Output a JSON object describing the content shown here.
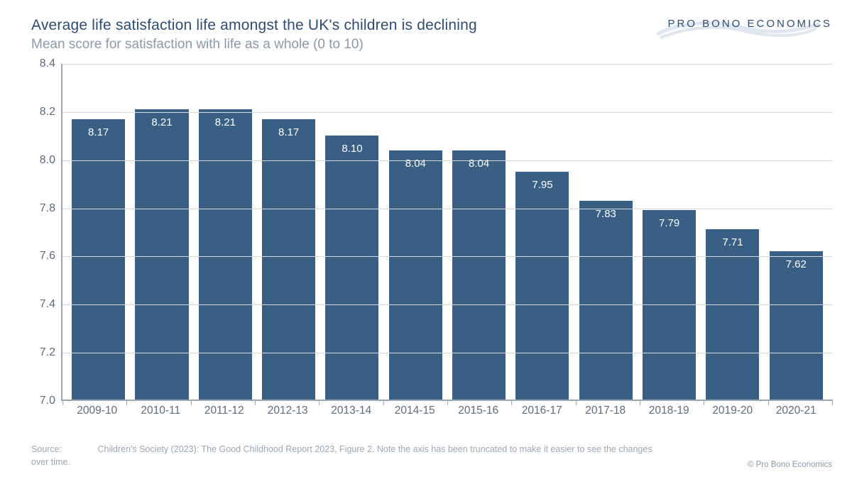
{
  "header": {
    "title": "Average life satisfaction life amongst the UK's children is declining",
    "subtitle": "Mean score for satisfaction with life as a whole (0 to 10)",
    "brand": "PRO BONO ECONOMICS"
  },
  "chart": {
    "type": "bar",
    "categories": [
      "2009-10",
      "2010-11",
      "2011-12",
      "2012-13",
      "2013-14",
      "2014-15",
      "2015-16",
      "2016-17",
      "2017-18",
      "2018-19",
      "2019-20",
      "2020-21"
    ],
    "values": [
      8.17,
      8.21,
      8.21,
      8.17,
      8.1,
      8.04,
      8.04,
      7.95,
      7.83,
      7.79,
      7.71,
      7.62
    ],
    "value_labels": [
      "8.17",
      "8.21",
      "8.21",
      "8.17",
      "8.10",
      "8.04",
      "8.04",
      "7.95",
      "7.83",
      "7.79",
      "7.71",
      "7.62"
    ],
    "bar_color": "#3a5f85",
    "ylim": [
      7.0,
      8.4
    ],
    "yticks": [
      7.0,
      7.2,
      7.4,
      7.6,
      7.8,
      8.0,
      8.2,
      8.4
    ],
    "ytick_labels": [
      "7.0",
      "7.2",
      "7.4",
      "7.6",
      "7.8",
      "8.0",
      "8.2",
      "8.4"
    ],
    "grid_color": "#d4d9de",
    "axis_color": "#9aa6b2",
    "background_color": "#ffffff",
    "bar_label_color": "#ffffff",
    "axis_label_color": "#5f6b78",
    "bar_width_ratio": 0.84,
    "title_color": "#2b4d73",
    "subtitle_color": "#8a99a8",
    "title_fontsize": 21,
    "subtitle_fontsize": 19,
    "axis_fontsize": 16,
    "bar_label_fontsize": 15
  },
  "footer": {
    "source_label": "Source:",
    "source_text": "Children's Society (2023): The Good Childhood Report 2023, Figure 2. Note the axis has been truncated to make it easier to see the changes over time.",
    "copyright": "© Pro Bono Economics"
  },
  "brand_swoosh_color": "#c7d3e2"
}
